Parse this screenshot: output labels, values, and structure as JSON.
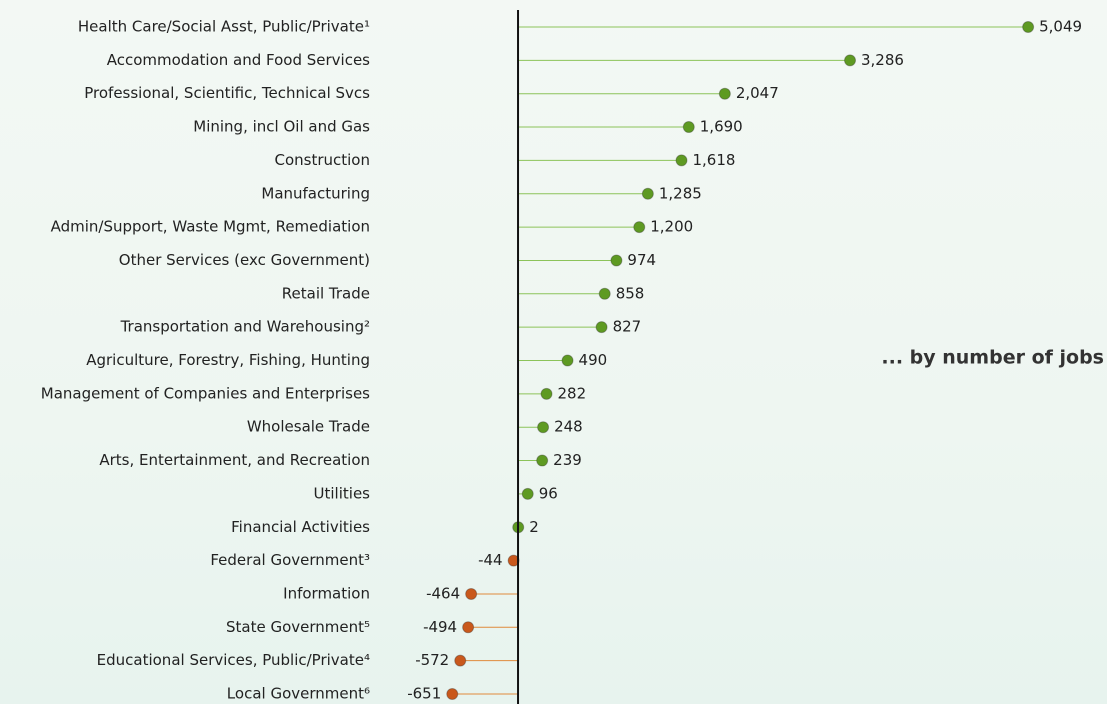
{
  "chart_data": {
    "type": "lollipop",
    "annotation": "... by number of jobs",
    "categories": [
      "Health Care/Social Asst, Public/Private¹",
      "Accommodation and Food Services",
      "Professional, Scientific, Technical Svcs",
      "Mining, incl Oil and Gas",
      "Construction",
      "Manufacturing",
      "Admin/Support, Waste Mgmt, Remediation",
      "Other Services (exc Government)",
      "Retail Trade",
      "Transportation and Warehousing²",
      "Agriculture, Forestry, Fishing, Hunting",
      "Management of Companies and Enterprises",
      "Wholesale Trade",
      "Arts, Entertainment, and Recreation",
      "Utilities",
      "Financial Activities",
      "Federal Government³",
      "Information",
      "State Government⁵",
      "Educational Services, Public/Private⁴",
      "Local Government⁶"
    ],
    "values": [
      5049,
      3286,
      2047,
      1690,
      1618,
      1285,
      1200,
      974,
      858,
      827,
      490,
      282,
      248,
      239,
      96,
      2,
      -44,
      -464,
      -494,
      -572,
      -651
    ],
    "value_labels": [
      "5,049",
      "3,286",
      "2,047",
      "1,690",
      "1,618",
      "1,285",
      "1,200",
      "974",
      "858",
      "827",
      "490",
      "282",
      "248",
      "239",
      "96",
      "2",
      "-44",
      "-464",
      "-494",
      "-572",
      "-651"
    ],
    "positive_color": "#5e9a22",
    "negative_color": "#c9581c",
    "zero_color": "#777777",
    "positive_line_color": "#8cc35a",
    "negative_line_color": "#e08a3c",
    "xlim": [
      -1000,
      5800
    ]
  }
}
